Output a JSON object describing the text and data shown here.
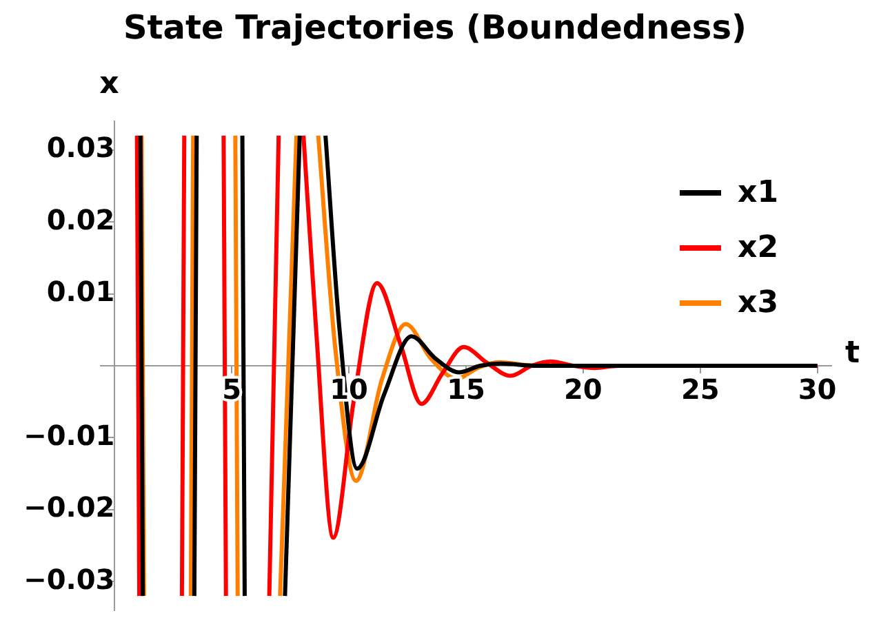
{
  "chart_data": {
    "type": "line",
    "title": "State Trajectories (Boundedness)",
    "xlabel": "t",
    "ylabel": "x",
    "xlim": [
      -0.6,
      30.6
    ],
    "ylim": [
      -0.034,
      0.034
    ],
    "xticks": [
      5,
      10,
      15,
      20,
      25,
      30
    ],
    "yticks": [
      {
        "value": -0.03,
        "label": "−0.03"
      },
      {
        "value": -0.02,
        "label": "−0.02"
      },
      {
        "value": -0.01,
        "label": "−0.01"
      },
      0.01,
      0.02,
      0.03
    ],
    "grid": false,
    "legend": "top right",
    "marker": "none",
    "line_style": "solid",
    "series": [
      {
        "name": "x1",
        "color": "#000000",
        "x": [
          1.1,
          1.2,
          2.3,
          3.4,
          3.5,
          4.5,
          5.45,
          5.55,
          6.4,
          7.27,
          7.9,
          8.5,
          9.0,
          9.6,
          10.35,
          11.5,
          12.67,
          13.7,
          14.7,
          15.6,
          16.5,
          18,
          30
        ],
        "values": [
          0.032,
          -0.032,
          null,
          -0.032,
          0.032,
          null,
          0.032,
          -0.032,
          null,
          -0.032,
          0.032,
          null,
          0.032,
          0.005,
          -0.0143,
          -0.004,
          0.0041,
          0.001,
          -0.0009,
          0,
          0.0003,
          0,
          0
        ]
      },
      {
        "name": "x2",
        "color": "#ff0000",
        "x": [
          0.95,
          1.05,
          2.0,
          2.87,
          2.97,
          3.8,
          4.65,
          4.75,
          5.7,
          6.6,
          7.0,
          7.5,
          8.06,
          8.6,
          9.33,
          10.2,
          11.2,
          12.2,
          13.1,
          14.0,
          14.9,
          15.9,
          16.9,
          17.8,
          18.6,
          19.6,
          20.5,
          21.5,
          30
        ],
        "values": [
          0.032,
          -0.032,
          null,
          -0.032,
          0.032,
          null,
          0.032,
          -0.032,
          null,
          -0.032,
          0.032,
          null,
          0.032,
          0.005,
          -0.0239,
          -0.005,
          0.0115,
          0.003,
          -0.0053,
          -0.001,
          0.0026,
          0.0004,
          -0.0014,
          0,
          0.0006,
          0,
          -0.0003,
          0,
          0
        ]
      },
      {
        "name": "x3",
        "color": "#ff8000",
        "x": [
          1.15,
          1.25,
          2.2,
          3.25,
          3.35,
          4.3,
          5.15,
          5.25,
          6.1,
          7.06,
          7.76,
          8.2,
          8.69,
          9.4,
          10.3,
          11.4,
          12.43,
          13.5,
          14.6,
          15.5,
          16.4,
          18,
          30
        ],
        "values": [
          0.032,
          -0.032,
          null,
          -0.032,
          0.032,
          null,
          0.032,
          -0.032,
          null,
          -0.032,
          0.032,
          null,
          0.032,
          0.003,
          -0.016,
          -0.002,
          0.0058,
          0.001,
          -0.0018,
          -0.0003,
          0.0005,
          0,
          0
        ]
      }
    ]
  }
}
